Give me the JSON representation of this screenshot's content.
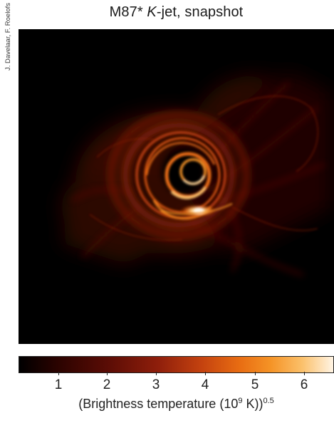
{
  "credit": "J. Davelaar, F. Roelofs",
  "title": {
    "object": "M87*",
    "model_symbol": "K",
    "rest": "-jet, snapshot"
  },
  "colorbar": {
    "ticks": [
      "1",
      "2",
      "3",
      "4",
      "5",
      "6"
    ],
    "label_prefix": "(Brightness temperature (10",
    "label_exponent_inner": "9",
    "label_middle": " K))",
    "label_exponent_outer": "0.5",
    "colormap": [
      "#000000",
      "#2a0300",
      "#5a0c05",
      "#8e1e0b",
      "#c4420f",
      "#e86c12",
      "#f59326",
      "#fbc06a",
      "#fff4e4"
    ]
  },
  "image": {
    "description_colors": {
      "background": "#000000",
      "hot": "#fff4e4",
      "warm": "#e86c12",
      "cool": "#5a0c05"
    }
  }
}
